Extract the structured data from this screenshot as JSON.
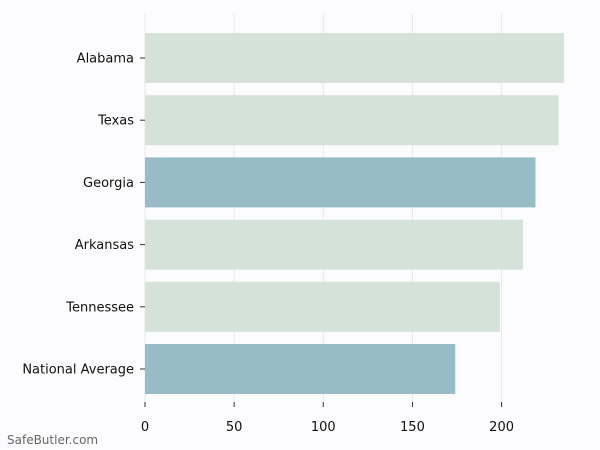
{
  "chart_data": {
    "type": "bar",
    "orientation": "horizontal",
    "categories": [
      "Alabama",
      "Texas",
      "Georgia",
      "Arkansas",
      "Tennessee",
      "National Average"
    ],
    "values": [
      235,
      232,
      219,
      212,
      199,
      174
    ],
    "highlight": [
      false,
      false,
      true,
      false,
      false,
      true
    ],
    "x_ticks": [
      0,
      50,
      100,
      150,
      200
    ],
    "xlim": [
      0,
      235
    ],
    "title": "",
    "xlabel": "",
    "ylabel": "",
    "grid": "vertical",
    "colors": {
      "bar": "#d5e2d9",
      "highlight": "#98bcc5",
      "grid": "#e8e8ea",
      "background": "#fcfcfe"
    }
  },
  "watermark": "SafeButler.com"
}
